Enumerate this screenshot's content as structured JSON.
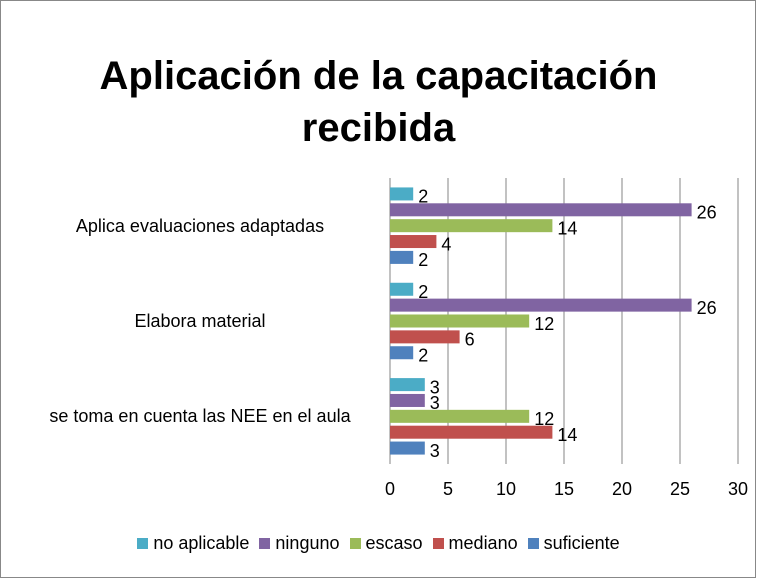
{
  "chart_data": {
    "type": "bar",
    "orientation": "horizontal",
    "title": "Aplicación de la capacitación recibida",
    "categories": [
      "Aplica evaluaciones adaptadas",
      "Elabora material",
      "se toma en cuenta las NEE en el aula"
    ],
    "series": [
      {
        "name": "no aplicable",
        "color": "#4bacc6",
        "values": [
          2,
          2,
          3
        ]
      },
      {
        "name": "ninguno",
        "color": "#8064a2",
        "values": [
          26,
          26,
          3
        ]
      },
      {
        "name": "escaso",
        "color": "#9bbb59",
        "values": [
          14,
          12,
          12
        ]
      },
      {
        "name": "mediano",
        "color": "#c0504d",
        "values": [
          4,
          6,
          14
        ]
      },
      {
        "name": "suficiente",
        "color": "#4f81bd",
        "values": [
          2,
          2,
          3
        ]
      }
    ],
    "xlim": [
      0,
      30
    ],
    "xticks": [
      0,
      5,
      10,
      15,
      20,
      25,
      30
    ],
    "grid": true,
    "legend": "bottom"
  }
}
